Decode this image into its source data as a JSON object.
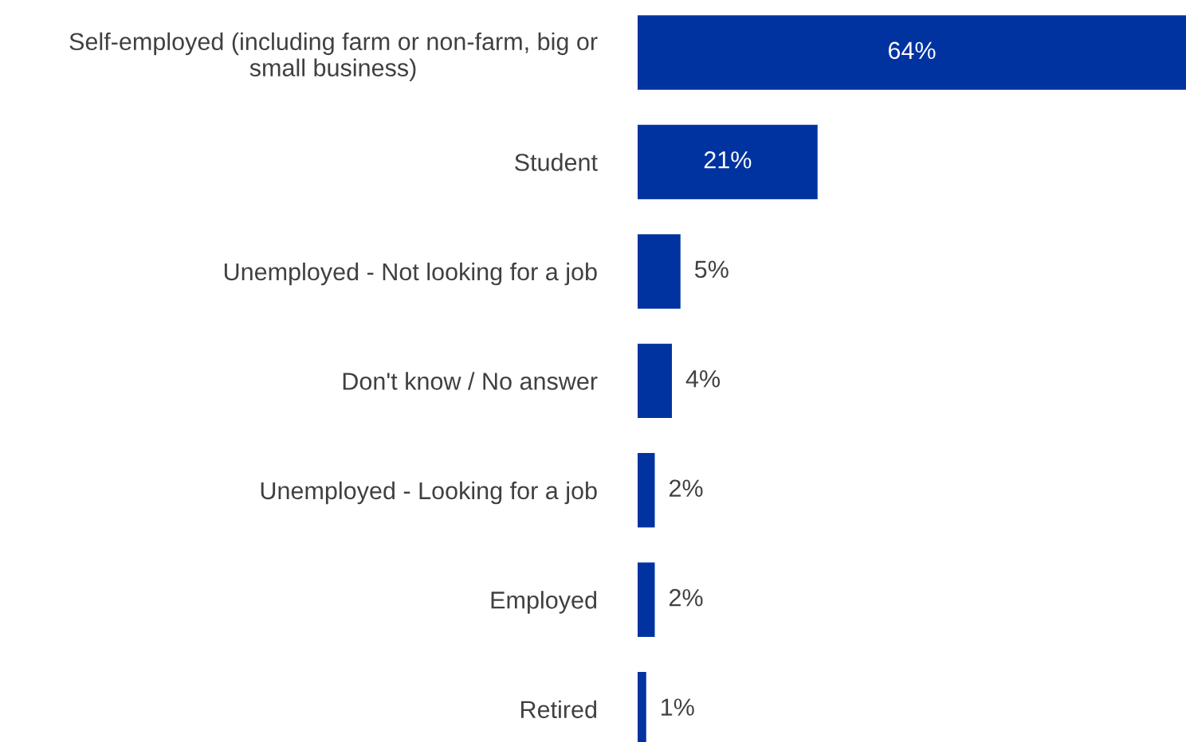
{
  "chart_data": {
    "type": "bar",
    "orientation": "horizontal",
    "categories": [
      "Self-employed (including farm or non-farm, big or\nsmall business)",
      "Student",
      "Unemployed - Not looking for a job",
      "Don't know / No answer",
      "Unemployed - Looking for a job",
      "Employed",
      "Retired"
    ],
    "values": [
      64,
      21,
      5,
      4,
      2,
      2,
      1
    ],
    "value_labels": [
      "64%",
      "21%",
      "5%",
      "4%",
      "2%",
      "2%",
      "1%"
    ],
    "color": "#0033a0"
  }
}
